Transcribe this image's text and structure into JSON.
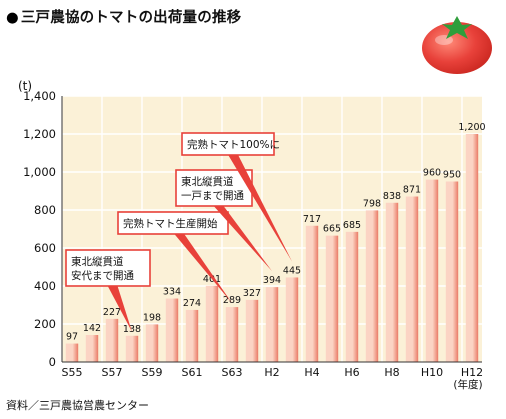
{
  "page": {
    "title": "三戸農協のトマトの出荷量の推移",
    "source": "資料／三戸農協営農センター"
  },
  "chart_data": {
    "type": "bar",
    "title": "三戸農協のトマトの出荷量の推移",
    "xlabel": "(年度)",
    "ylabel": "(t)",
    "ylim": [
      0,
      1400
    ],
    "yticks": [
      "0",
      "200",
      "400",
      "600",
      "800",
      "1,000",
      "1,200",
      "1,400"
    ],
    "grid": true,
    "categories": [
      "S55",
      "S56",
      "S57",
      "S58",
      "S59",
      "S60",
      "S61",
      "S62",
      "S63",
      "H1",
      "H2",
      "H3",
      "H4",
      "H5",
      "H6",
      "H7",
      "H8",
      "H9",
      "H10",
      "H11",
      "H12"
    ],
    "x_tick_labels": [
      "S55",
      "",
      "S57",
      "",
      "S59",
      "",
      "S61",
      "",
      "S63",
      "",
      "H2",
      "",
      "H4",
      "",
      "H6",
      "",
      "H8",
      "",
      "H10",
      "",
      "H12"
    ],
    "values": [
      97,
      142,
      227,
      138,
      198,
      334,
      274,
      401,
      289,
      327,
      394,
      445,
      717,
      665,
      685,
      798,
      838,
      871,
      960,
      950,
      1200
    ],
    "value_labels": [
      "97",
      "142",
      "227",
      "138",
      "198",
      "334",
      "274",
      "401",
      "289",
      "327",
      "394",
      "445",
      "717",
      "665",
      "685",
      "798",
      "838",
      "871",
      "960",
      "950",
      "1,200"
    ],
    "annotations": [
      {
        "lines": [
          "東北縦貫道",
          "安代まで開通"
        ],
        "category": "S58"
      },
      {
        "lines": [
          "完熟トマト生産開始"
        ],
        "category": "S63"
      },
      {
        "lines": [
          "東北縦貫道",
          "一戸まで開通"
        ],
        "category": "H2"
      },
      {
        "lines": [
          "完熟トマト100%に"
        ],
        "category": "H3"
      }
    ],
    "colors": {
      "plot_bg": "#fbf1d7",
      "bar_light": "#fbd4c4",
      "bar_dark": "#ea7a66",
      "grid": "#ffffff",
      "callout": "#e8413a"
    }
  },
  "decoration": {
    "icon": "tomato-icon",
    "tomato_color": "#e8413a",
    "leaf_color": "#2f9e3b"
  }
}
